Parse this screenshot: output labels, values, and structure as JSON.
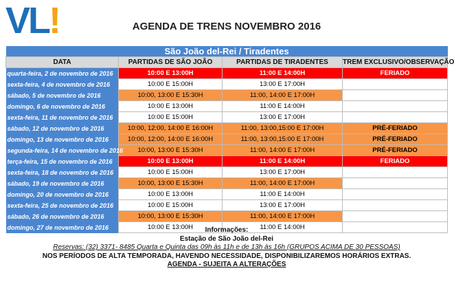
{
  "logo": {
    "text": "VL",
    "mark": "!"
  },
  "title": "AGENDA DE TRENS NOVEMBRO 2016",
  "table": {
    "route": "São João del-Rei / Tiradentes",
    "headers": [
      "DATA",
      "PARTIDAS DE SÃO JOÃO",
      "PARTIDAS DE TIRADENTES",
      "TREM EXCLUSIVO/OBSERVAÇÃO"
    ],
    "rows": [
      {
        "date": "quarta-feira, 2 de novembro de 2016",
        "sj": "10:00 E 13:00H",
        "tir": "11:00 E 14:00H",
        "obs": "FERIADO",
        "color": "red"
      },
      {
        "date": "sexta-feira, 4 de novembro de 2016",
        "sj": "10:00 E 15:00H",
        "tir": "13:00 E 17:00H",
        "obs": "",
        "color": "white"
      },
      {
        "date": "sábado, 5 de novembro de 2016",
        "sj": "10:00, 13:00 E 15:30H",
        "tir": "11:00, 14:00 E 17:00H",
        "obs": "",
        "color": "orange"
      },
      {
        "date": "domingo, 6 de novembro de 2016",
        "sj": "10:00 E 13:00H",
        "tir": "11:00 E 14:00H",
        "obs": "",
        "color": "white"
      },
      {
        "date": "sexta-feira, 11 de novembro de 2016",
        "sj": "10:00 E 15:00H",
        "tir": "13:00 E 17:00H",
        "obs": "",
        "color": "white"
      },
      {
        "date": "sábado, 12 de novembro de 2016",
        "sj": "10:00, 12:00, 14:00 E 16:00H",
        "tir": "11:00, 13:00,15:00 E 17:00H",
        "obs": "PRÉ-FERIADO",
        "color": "orange"
      },
      {
        "date": "domingo, 13 de novembro de 2016",
        "sj": "10:00, 12:00, 14:00 E 16:00H",
        "tir": "11:00, 13:00,15:00 E 17:00H",
        "obs": "PRÉ-FERIADO",
        "color": "orange"
      },
      {
        "date": "segunda-feira, 14 de novembro de 2016",
        "sj": "10:00, 13:00 E 15:30H",
        "tir": "11:00, 14:00 E 17:00H",
        "obs": "PRÉ-FERIADO",
        "color": "orange"
      },
      {
        "date": "terça-feira, 15 de novembro de 2016",
        "sj": "10:00 E 13:00H",
        "tir": "11:00 E 14:00H",
        "obs": "FERIADO",
        "color": "red"
      },
      {
        "date": "sexta-feira, 18 de novembro de 2016",
        "sj": "10:00 E 15:00H",
        "tir": "13:00 E 17:00H",
        "obs": "",
        "color": "white"
      },
      {
        "date": "sábado, 19 de novembro de 2016",
        "sj": "10:00, 13:00 E 15:30H",
        "tir": "11:00, 14:00 E 17:00H",
        "obs": "",
        "color": "orange"
      },
      {
        "date": "domingo, 20 de novembro de 2016",
        "sj": "10:00 E 13:00H",
        "tir": "11:00 E 14:00H",
        "obs": "",
        "color": "white"
      },
      {
        "date": "sexta-feira, 25 de novembro de 2016",
        "sj": "10:00 E 15:00H",
        "tir": "13:00 E 17:00H",
        "obs": "",
        "color": "white"
      },
      {
        "date": "sábado, 26 de novembro de 2016",
        "sj": "10:00, 13:00 E 15:30H",
        "tir": "11:00, 14:00 E 17:00H",
        "obs": "",
        "color": "orange"
      },
      {
        "date": "domingo, 27 de novembro de 2016",
        "sj": "10:00 E 13:00H",
        "tir": "11:00 E 14:00H",
        "obs": "",
        "color": "white"
      }
    ]
  },
  "info": {
    "heading": "Informações:",
    "station": "Estação de São João del-Rei",
    "reservations": "Reservas: (32) 3371- 8485 Quarta e Quinta  das 09h às 11h e de 13h às 16h (GRUPOS ACIMA DE 30 PESSOAS)",
    "notice": "NOS PERÍODOS DE ALTA TEMPORADA, HAVENDO NECESSIDADE, DISPONIBILIZAREMOS HORÁRIOS EXTRAS.",
    "disclaimer": "AGENDA - SUJEITA A ALTERAÇÕES"
  },
  "colors": {
    "blue": "#4a86d0",
    "orange": "#f79646",
    "red": "#ff0000",
    "header_gray": "#d9d9d9"
  }
}
